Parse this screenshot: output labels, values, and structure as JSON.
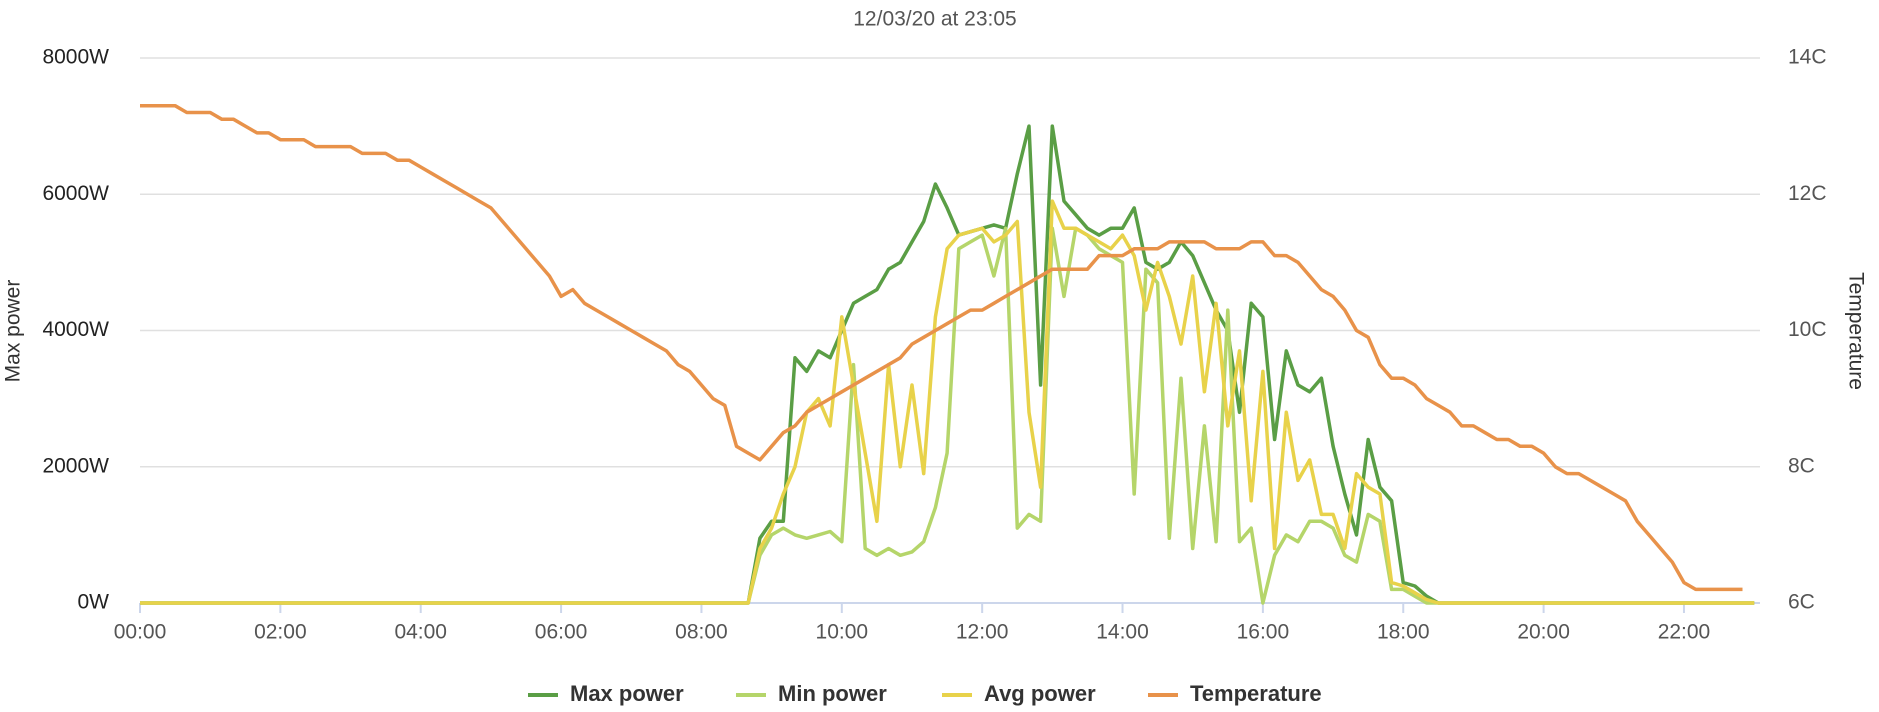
{
  "chart_data": {
    "type": "line",
    "title": "12/03/20 at 23:05",
    "ylabel": "Max power",
    "y2label": "Temperature",
    "xlim": [
      "00:00",
      "23:05"
    ],
    "xticks": [
      "00:00",
      "02:00",
      "04:00",
      "06:00",
      "08:00",
      "10:00",
      "12:00",
      "14:00",
      "16:00",
      "18:00",
      "20:00",
      "22:00"
    ],
    "ylim": [
      0,
      8000
    ],
    "yticks": [
      {
        "value": 0,
        "label": "0W"
      },
      {
        "value": 2000,
        "label": "2000W"
      },
      {
        "value": 4000,
        "label": "4000W"
      },
      {
        "value": 6000,
        "label": "6000W"
      },
      {
        "value": 8000,
        "label": "8000W"
      }
    ],
    "y2lim": [
      6,
      14
    ],
    "y2ticks": [
      {
        "value": 6,
        "label": "6C"
      },
      {
        "value": 8,
        "label": "8C"
      },
      {
        "value": 10,
        "label": "10C"
      },
      {
        "value": 12,
        "label": "12C"
      },
      {
        "value": 14,
        "label": "14C"
      }
    ],
    "grid": true,
    "legend": "bottom",
    "x": [
      "00:00",
      "00:10",
      "00:20",
      "00:30",
      "00:40",
      "00:50",
      "01:00",
      "01:10",
      "01:20",
      "01:30",
      "01:40",
      "01:50",
      "02:00",
      "02:10",
      "02:20",
      "02:30",
      "02:40",
      "02:50",
      "03:00",
      "03:10",
      "03:20",
      "03:30",
      "03:40",
      "03:50",
      "04:00",
      "04:10",
      "04:20",
      "04:30",
      "04:40",
      "04:50",
      "05:00",
      "05:10",
      "05:20",
      "05:30",
      "05:40",
      "05:50",
      "06:00",
      "06:10",
      "06:20",
      "06:30",
      "06:40",
      "06:50",
      "07:00",
      "07:10",
      "07:20",
      "07:30",
      "07:40",
      "07:50",
      "08:00",
      "08:10",
      "08:20",
      "08:30",
      "08:40",
      "08:50",
      "09:00",
      "09:10",
      "09:20",
      "09:30",
      "09:40",
      "09:50",
      "10:00",
      "10:10",
      "10:20",
      "10:30",
      "10:40",
      "10:50",
      "11:00",
      "11:10",
      "11:20",
      "11:30",
      "11:40",
      "11:50",
      "12:00",
      "12:10",
      "12:20",
      "12:30",
      "12:40",
      "12:50",
      "13:00",
      "13:10",
      "13:20",
      "13:30",
      "13:40",
      "13:50",
      "14:00",
      "14:10",
      "14:20",
      "14:30",
      "14:40",
      "14:50",
      "15:00",
      "15:10",
      "15:20",
      "15:30",
      "15:40",
      "15:50",
      "16:00",
      "16:10",
      "16:20",
      "16:30",
      "16:40",
      "16:50",
      "17:00",
      "17:10",
      "17:20",
      "17:30",
      "17:40",
      "17:50",
      "18:00",
      "18:10",
      "18:20",
      "18:30",
      "18:40",
      "18:50",
      "19:00",
      "19:10",
      "19:20",
      "19:30",
      "19:40",
      "19:50",
      "20:00",
      "20:10",
      "20:20",
      "20:30",
      "20:40",
      "20:50",
      "21:00",
      "21:10",
      "21:20",
      "21:30",
      "21:40",
      "21:50",
      "22:00",
      "22:10",
      "22:20",
      "22:30",
      "22:40",
      "22:50",
      "23:00"
    ],
    "series": [
      {
        "name": "Max power",
        "color": "#5a9e45",
        "values": [
          0,
          0,
          0,
          0,
          0,
          0,
          0,
          0,
          0,
          0,
          0,
          0,
          0,
          0,
          0,
          0,
          0,
          0,
          0,
          0,
          0,
          0,
          0,
          0,
          0,
          0,
          0,
          0,
          0,
          0,
          0,
          0,
          0,
          0,
          0,
          0,
          0,
          0,
          0,
          0,
          0,
          0,
          0,
          0,
          0,
          0,
          0,
          0,
          0,
          0,
          0,
          0,
          0,
          950,
          1200,
          1200,
          3600,
          3400,
          3700,
          3600,
          4000,
          4400,
          4500,
          4600,
          4900,
          5000,
          5300,
          5600,
          6150,
          5800,
          5400,
          5450,
          5500,
          5550,
          5500,
          6300,
          7000,
          3200,
          7000,
          5900,
          5700,
          5500,
          5400,
          5500,
          5500,
          5800,
          5000,
          4900,
          5000,
          5300,
          5100,
          4700,
          4300,
          4000,
          2800,
          4400,
          4200,
          2400,
          3700,
          3200,
          3100,
          3300,
          2300,
          1600,
          1000,
          2400,
          1700,
          1500,
          300,
          250,
          100,
          0,
          0,
          0,
          0,
          0,
          0,
          0,
          0,
          0,
          0,
          0,
          0,
          0,
          0,
          0,
          0,
          0,
          0,
          0,
          0,
          0,
          0,
          0,
          0,
          0,
          0,
          0,
          0
        ]
      },
      {
        "name": "Min power",
        "color": "#b5d56a",
        "values": [
          0,
          0,
          0,
          0,
          0,
          0,
          0,
          0,
          0,
          0,
          0,
          0,
          0,
          0,
          0,
          0,
          0,
          0,
          0,
          0,
          0,
          0,
          0,
          0,
          0,
          0,
          0,
          0,
          0,
          0,
          0,
          0,
          0,
          0,
          0,
          0,
          0,
          0,
          0,
          0,
          0,
          0,
          0,
          0,
          0,
          0,
          0,
          0,
          0,
          0,
          0,
          0,
          0,
          700,
          1000,
          1100,
          1000,
          950,
          1000,
          1050,
          900,
          3500,
          800,
          700,
          800,
          700,
          750,
          900,
          1400,
          2200,
          5200,
          5300,
          5400,
          4800,
          5500,
          1100,
          1300,
          1200,
          5500,
          4500,
          5500,
          5400,
          5200,
          5100,
          5000,
          1600,
          4900,
          4700,
          950,
          3300,
          800,
          2600,
          900,
          4300,
          900,
          1100,
          0,
          700,
          1000,
          900,
          1200,
          1200,
          1100,
          700,
          600,
          1300,
          1200,
          200,
          200,
          100,
          0,
          0,
          0,
          0,
          0,
          0,
          0,
          0,
          0,
          0,
          0,
          0,
          0,
          0,
          0,
          0,
          0,
          0,
          0,
          0,
          0,
          0,
          0,
          0,
          0,
          0,
          0,
          0,
          0
        ]
      },
      {
        "name": "Avg power",
        "color": "#e8d24a",
        "values": [
          0,
          0,
          0,
          0,
          0,
          0,
          0,
          0,
          0,
          0,
          0,
          0,
          0,
          0,
          0,
          0,
          0,
          0,
          0,
          0,
          0,
          0,
          0,
          0,
          0,
          0,
          0,
          0,
          0,
          0,
          0,
          0,
          0,
          0,
          0,
          0,
          0,
          0,
          0,
          0,
          0,
          0,
          0,
          0,
          0,
          0,
          0,
          0,
          0,
          0,
          0,
          0,
          0,
          800,
          1100,
          1600,
          2000,
          2800,
          3000,
          2600,
          4200,
          3200,
          2200,
          1200,
          3500,
          2000,
          3200,
          1900,
          4200,
          5200,
          5400,
          5450,
          5500,
          5300,
          5400,
          5600,
          2800,
          1700,
          5900,
          5500,
          5500,
          5400,
          5300,
          5200,
          5400,
          5100,
          4300,
          5000,
          4500,
          3800,
          4800,
          3100,
          4400,
          2600,
          3700,
          1500,
          3400,
          800,
          2800,
          1800,
          2100,
          1300,
          1300,
          800,
          1900,
          1700,
          1600,
          300,
          250,
          150,
          50,
          0,
          0,
          0,
          0,
          0,
          0,
          0,
          0,
          0,
          0,
          0,
          0,
          0,
          0,
          0,
          0,
          0,
          0,
          0,
          0,
          0,
          0,
          0,
          0,
          0,
          0,
          0,
          0
        ]
      },
      {
        "name": "Temperature",
        "color": "#e8924a",
        "axis": "y2",
        "values": [
          13.3,
          13.3,
          13.3,
          13.3,
          13.2,
          13.2,
          13.2,
          13.1,
          13.1,
          13.0,
          12.9,
          12.9,
          12.8,
          12.8,
          12.8,
          12.7,
          12.7,
          12.7,
          12.7,
          12.6,
          12.6,
          12.6,
          12.5,
          12.5,
          12.4,
          12.3,
          12.2,
          12.1,
          12.0,
          11.9,
          11.8,
          11.6,
          11.4,
          11.2,
          11.0,
          10.8,
          10.5,
          10.6,
          10.4,
          10.3,
          10.2,
          10.1,
          10.0,
          9.9,
          9.8,
          9.7,
          9.5,
          9.4,
          9.2,
          9.0,
          8.9,
          8.3,
          8.2,
          8.1,
          8.3,
          8.5,
          8.6,
          8.8,
          8.9,
          9.0,
          9.1,
          9.2,
          9.3,
          9.4,
          9.5,
          9.6,
          9.8,
          9.9,
          10.0,
          10.1,
          10.2,
          10.3,
          10.3,
          10.4,
          10.5,
          10.6,
          10.7,
          10.8,
          10.9,
          10.9,
          10.9,
          10.9,
          11.1,
          11.1,
          11.1,
          11.2,
          11.2,
          11.2,
          11.3,
          11.3,
          11.3,
          11.3,
          11.2,
          11.2,
          11.2,
          11.3,
          11.3,
          11.1,
          11.1,
          11.0,
          10.8,
          10.6,
          10.5,
          10.3,
          10.0,
          9.9,
          9.5,
          9.3,
          9.3,
          9.2,
          9.0,
          8.9,
          8.8,
          8.6,
          8.6,
          8.5,
          8.4,
          8.4,
          8.3,
          8.3,
          8.2,
          8.0,
          7.9,
          7.9,
          7.8,
          7.7,
          7.6,
          7.5,
          7.2,
          7.0,
          6.8,
          6.6,
          6.3,
          6.2,
          6.2,
          6.2,
          6.2,
          6.2,
          null
        ]
      }
    ]
  }
}
